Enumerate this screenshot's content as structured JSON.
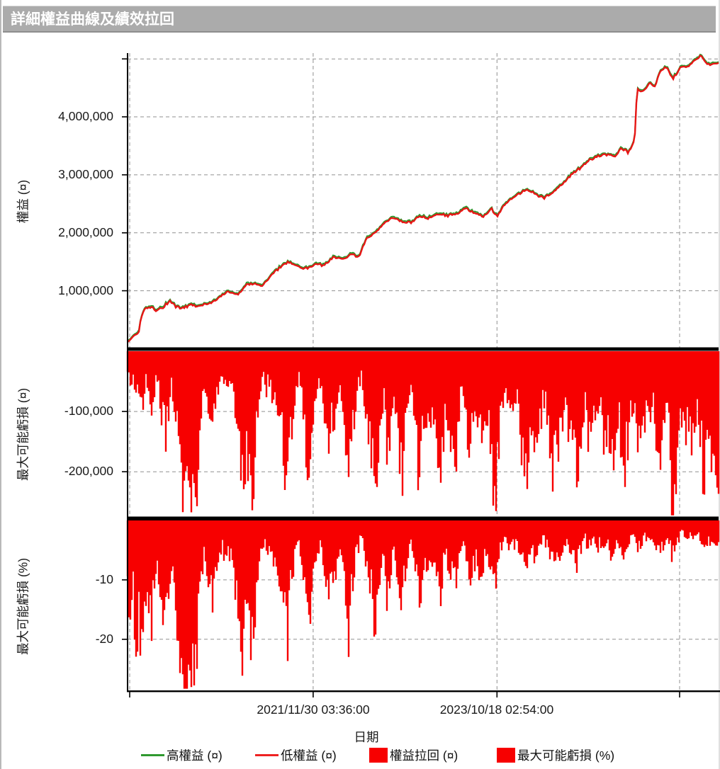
{
  "titlebar": {
    "title": "詳細權益曲線及績效拉回"
  },
  "colors": {
    "fill_red": "#f70000",
    "line_red": "#e81616",
    "line_green": "#2f992f",
    "grid": "#909090",
    "axis": "#000000",
    "titlebar_bg": "#ababab",
    "titlebar_text": "#ffffff"
  },
  "x_axis": {
    "label": "日期",
    "ticks": [
      {
        "f": 0.0036,
        "label": ""
      },
      {
        "f": 0.314,
        "label": "2021/11/30 03:36:00"
      },
      {
        "f": 0.625,
        "label": "2023/10/18 02:54:00"
      },
      {
        "f": 0.934,
        "label": ""
      }
    ]
  },
  "legend": {
    "items": [
      {
        "label": "高權益 (¤)",
        "swatch": "line",
        "color": "#2f992f"
      },
      {
        "label": "低權益 (¤)",
        "swatch": "line",
        "color": "#ee2222"
      },
      {
        "label": "權益拉回 (¤)",
        "swatch": "box",
        "color": "#f70000"
      },
      {
        "label": "最大可能虧損 (%)",
        "swatch": "box",
        "color": "#f70000"
      }
    ]
  },
  "chart_data": [
    {
      "type": "line",
      "title": "equity curve",
      "ylabel": "權益 (¤)",
      "xlabel": "日期",
      "ylim": [
        0,
        5100000
      ],
      "grid": true,
      "yticks": [
        1000000,
        2000000,
        3000000,
        4000000,
        5000000
      ],
      "ytick_labels": [
        "1,000,000",
        "2,000,000",
        "3,000,000",
        "4,000,000",
        ""
      ],
      "series": [
        {
          "name": "高權益 (¤)",
          "color": "#2f992f"
        },
        {
          "name": "低權益 (¤)",
          "color": "#e81616"
        }
      ],
      "x_is_fraction_of_date_axis": true,
      "points": [
        [
          0.0,
          100000
        ],
        [
          0.006,
          160000
        ],
        [
          0.013,
          240000
        ],
        [
          0.019,
          300000
        ],
        [
          0.023,
          520000
        ],
        [
          0.028,
          690000
        ],
        [
          0.038,
          730000
        ],
        [
          0.048,
          660000
        ],
        [
          0.06,
          720000
        ],
        [
          0.072,
          830000
        ],
        [
          0.082,
          720000
        ],
        [
          0.094,
          700000
        ],
        [
          0.108,
          760000
        ],
        [
          0.12,
          720000
        ],
        [
          0.132,
          780000
        ],
        [
          0.144,
          800000
        ],
        [
          0.158,
          900000
        ],
        [
          0.17,
          1000000
        ],
        [
          0.186,
          930000
        ],
        [
          0.2,
          1100000
        ],
        [
          0.216,
          1130000
        ],
        [
          0.228,
          1080000
        ],
        [
          0.242,
          1250000
        ],
        [
          0.257,
          1400000
        ],
        [
          0.272,
          1500000
        ],
        [
          0.288,
          1420000
        ],
        [
          0.302,
          1380000
        ],
        [
          0.318,
          1460000
        ],
        [
          0.332,
          1440000
        ],
        [
          0.348,
          1580000
        ],
        [
          0.362,
          1550000
        ],
        [
          0.38,
          1620000
        ],
        [
          0.392,
          1580000
        ],
        [
          0.404,
          1900000
        ],
        [
          0.42,
          2020000
        ],
        [
          0.434,
          2150000
        ],
        [
          0.45,
          2260000
        ],
        [
          0.464,
          2200000
        ],
        [
          0.48,
          2170000
        ],
        [
          0.494,
          2300000
        ],
        [
          0.506,
          2240000
        ],
        [
          0.524,
          2320000
        ],
        [
          0.542,
          2300000
        ],
        [
          0.558,
          2330000
        ],
        [
          0.572,
          2420000
        ],
        [
          0.588,
          2340000
        ],
        [
          0.602,
          2280000
        ],
        [
          0.615,
          2420000
        ],
        [
          0.625,
          2280000
        ],
        [
          0.638,
          2480000
        ],
        [
          0.652,
          2600000
        ],
        [
          0.676,
          2760000
        ],
        [
          0.692,
          2650000
        ],
        [
          0.704,
          2600000
        ],
        [
          0.72,
          2700000
        ],
        [
          0.734,
          2820000
        ],
        [
          0.752,
          3020000
        ],
        [
          0.767,
          3120000
        ],
        [
          0.782,
          3260000
        ],
        [
          0.796,
          3320000
        ],
        [
          0.812,
          3360000
        ],
        [
          0.824,
          3300000
        ],
        [
          0.836,
          3460000
        ],
        [
          0.848,
          3380000
        ],
        [
          0.855,
          3550000
        ],
        [
          0.858,
          3620000
        ],
        [
          0.862,
          4480000
        ],
        [
          0.872,
          4420000
        ],
        [
          0.884,
          4600000
        ],
        [
          0.892,
          4520000
        ],
        [
          0.902,
          4800000
        ],
        [
          0.911,
          4860000
        ],
        [
          0.923,
          4660000
        ],
        [
          0.935,
          4840000
        ],
        [
          0.95,
          4880000
        ],
        [
          0.97,
          5060000
        ],
        [
          0.982,
          4900000
        ],
        [
          1.0,
          4930000
        ]
      ]
    },
    {
      "type": "area",
      "title": "equity drawdown (currency)",
      "ylabel": "最大可能虧損 (¤)",
      "legend_name": "權益拉回 (¤)",
      "ylim": [
        -275000,
        0
      ],
      "grid": true,
      "yticks": [
        -100000,
        -200000
      ],
      "ytick_labels": [
        "-100,000",
        "-200,000"
      ],
      "color": "#f70000",
      "x_sampling": "uniform 0..1, 201 samples",
      "values": [
        -35000,
        -60000,
        -45000,
        -75000,
        -55000,
        -90000,
        -50000,
        -65000,
        -105000,
        -70000,
        -45000,
        -80000,
        -115000,
        -130000,
        -85000,
        -55000,
        -120000,
        -145000,
        -185000,
        -225000,
        -258000,
        -268000,
        -235000,
        -250000,
        -160000,
        -85000,
        -50000,
        -70000,
        -100000,
        -125000,
        -75000,
        -50000,
        -35000,
        -60000,
        -45000,
        -60000,
        -85000,
        -115000,
        -155000,
        -235000,
        -185000,
        -160000,
        -240000,
        -165000,
        -95000,
        -55000,
        -40000,
        -60000,
        -50000,
        -75000,
        -60000,
        -90000,
        -125000,
        -165000,
        -230000,
        -145000,
        -95000,
        -65000,
        -45000,
        -80000,
        -115000,
        -220000,
        -155000,
        -100000,
        -65000,
        -45000,
        -75000,
        -115000,
        -140000,
        -90000,
        -125000,
        -75000,
        -50000,
        -100000,
        -155000,
        -239000,
        -135000,
        -90000,
        -60000,
        -40000,
        -70000,
        -100000,
        -135000,
        -185000,
        -250000,
        -195000,
        -125000,
        -80000,
        -225000,
        -120000,
        -65000,
        -105000,
        -160000,
        -215000,
        -125000,
        -85000,
        -55000,
        -95000,
        -145000,
        -258000,
        -105000,
        -120000,
        -95000,
        -135000,
        -115000,
        -165000,
        -195000,
        -125000,
        -85000,
        -150000,
        -105000,
        -213000,
        -95000,
        -70000,
        -90000,
        -125000,
        -165000,
        -135000,
        -110000,
        -145000,
        -150000,
        -95000,
        -120000,
        -175000,
        -252000,
        -185000,
        -125000,
        -85000,
        -60000,
        -95000,
        -70000,
        -110000,
        -80000,
        -140000,
        -180000,
        -190000,
        -135000,
        -110000,
        -160000,
        -130000,
        -100000,
        -75000,
        -120000,
        -160000,
        -185000,
        -140000,
        -165000,
        -120000,
        -95000,
        -125000,
        -170000,
        -140000,
        -200000,
        -160000,
        -120000,
        -90000,
        -150000,
        -110000,
        -90000,
        -130000,
        -100000,
        -140000,
        -120000,
        -160000,
        -190000,
        -130000,
        -100000,
        -150000,
        -210000,
        -160000,
        -110000,
        -80000,
        -130000,
        -170000,
        -140000,
        -110000,
        -85000,
        -120000,
        -95000,
        -140000,
        -185000,
        -150000,
        -115000,
        -85000,
        -265000,
        -255000,
        -170000,
        -120000,
        -90000,
        -135000,
        -105000,
        -145000,
        -120000,
        -95000,
        -140000,
        -225000,
        -155000,
        -190000,
        -220000,
        -175000,
        -205000
      ]
    },
    {
      "type": "area",
      "title": "max possible loss (percent)",
      "ylabel": "最大可能虧損 (%)",
      "legend_name": "最大可能虧損 (%)",
      "ylim": [
        -28.6,
        0
      ],
      "grid": true,
      "yticks": [
        -10,
        -20
      ],
      "ytick_labels": [
        "-10",
        "-20"
      ],
      "color": "#f70000",
      "x_sampling": "uniform 0..1, 201 samples",
      "values": [
        -12,
        -18,
        -11,
        -24,
        -15,
        -27,
        -12,
        -13,
        -17,
        -11,
        -6.5,
        -11,
        -16,
        -17.5,
        -11,
        -7,
        -15.5,
        -18.5,
        -23,
        -26.5,
        -28.2,
        -28.4,
        -25.5,
        -26.5,
        -17.5,
        -9.5,
        -5.5,
        -7.5,
        -11,
        -13.5,
        -8,
        -5.5,
        -4,
        -6.5,
        -5,
        -6.5,
        -9,
        -12,
        -15.5,
        -23,
        -18,
        -15.5,
        -22.5,
        -15.5,
        -9,
        -5,
        -3.5,
        -5.5,
        -4.5,
        -6.5,
        -5.5,
        -8,
        -11,
        -14.5,
        -19.5,
        -12.5,
        -8,
        -5.5,
        -4,
        -7,
        -9.5,
        -18.5,
        -13,
        -8.5,
        -5.5,
        -4,
        -6.5,
        -10,
        -12,
        -7.5,
        -10.5,
        -6.5,
        -4,
        -8,
        -12.5,
        -19,
        -10.5,
        -7,
        -4.5,
        -3,
        -5,
        -7,
        -9.5,
        -13,
        -17.5,
        -13.5,
        -8.5,
        -5.5,
        -15.5,
        -8,
        -4.5,
        -7,
        -10.5,
        -14,
        -8,
        -5.5,
        -3.5,
        -6,
        -9,
        -16,
        -6.5,
        -7.5,
        -6,
        -8.5,
        -7,
        -10,
        -11.5,
        -7.5,
        -5,
        -9,
        -6,
        -12.5,
        -5.5,
        -4,
        -5,
        -7,
        -9,
        -7.5,
        -6,
        -8,
        -8,
        -5,
        -6.5,
        -9,
        -11,
        -8,
        -5.5,
        -3.5,
        -2.5,
        -4,
        -3,
        -4.5,
        -3.5,
        -6,
        -7.5,
        -8,
        -5.5,
        -4.5,
        -6.5,
        -5.5,
        -4,
        -3,
        -4.5,
        -6,
        -7,
        -5,
        -6,
        -4.5,
        -3.5,
        -4.5,
        -6,
        -5,
        -7,
        -5.5,
        -4,
        -3,
        -5,
        -3.5,
        -3,
        -4.5,
        -3.5,
        -4.5,
        -4,
        -5,
        -6,
        -4,
        -3,
        -4.5,
        -6.5,
        -5,
        -3.5,
        -2.5,
        -4,
        -5,
        -4,
        -3,
        -2.5,
        -3.5,
        -2.8,
        -4,
        -5.2,
        -4.2,
        -3.2,
        -2.4,
        -5.8,
        -5.6,
        -3.7,
        -2.6,
        -2,
        -2.9,
        -2.3,
        -3.1,
        -2.6,
        -2,
        -2.9,
        -4.6,
        -3.2,
        -3.9,
        -4.5,
        -3.6,
        -4.2
      ]
    }
  ]
}
